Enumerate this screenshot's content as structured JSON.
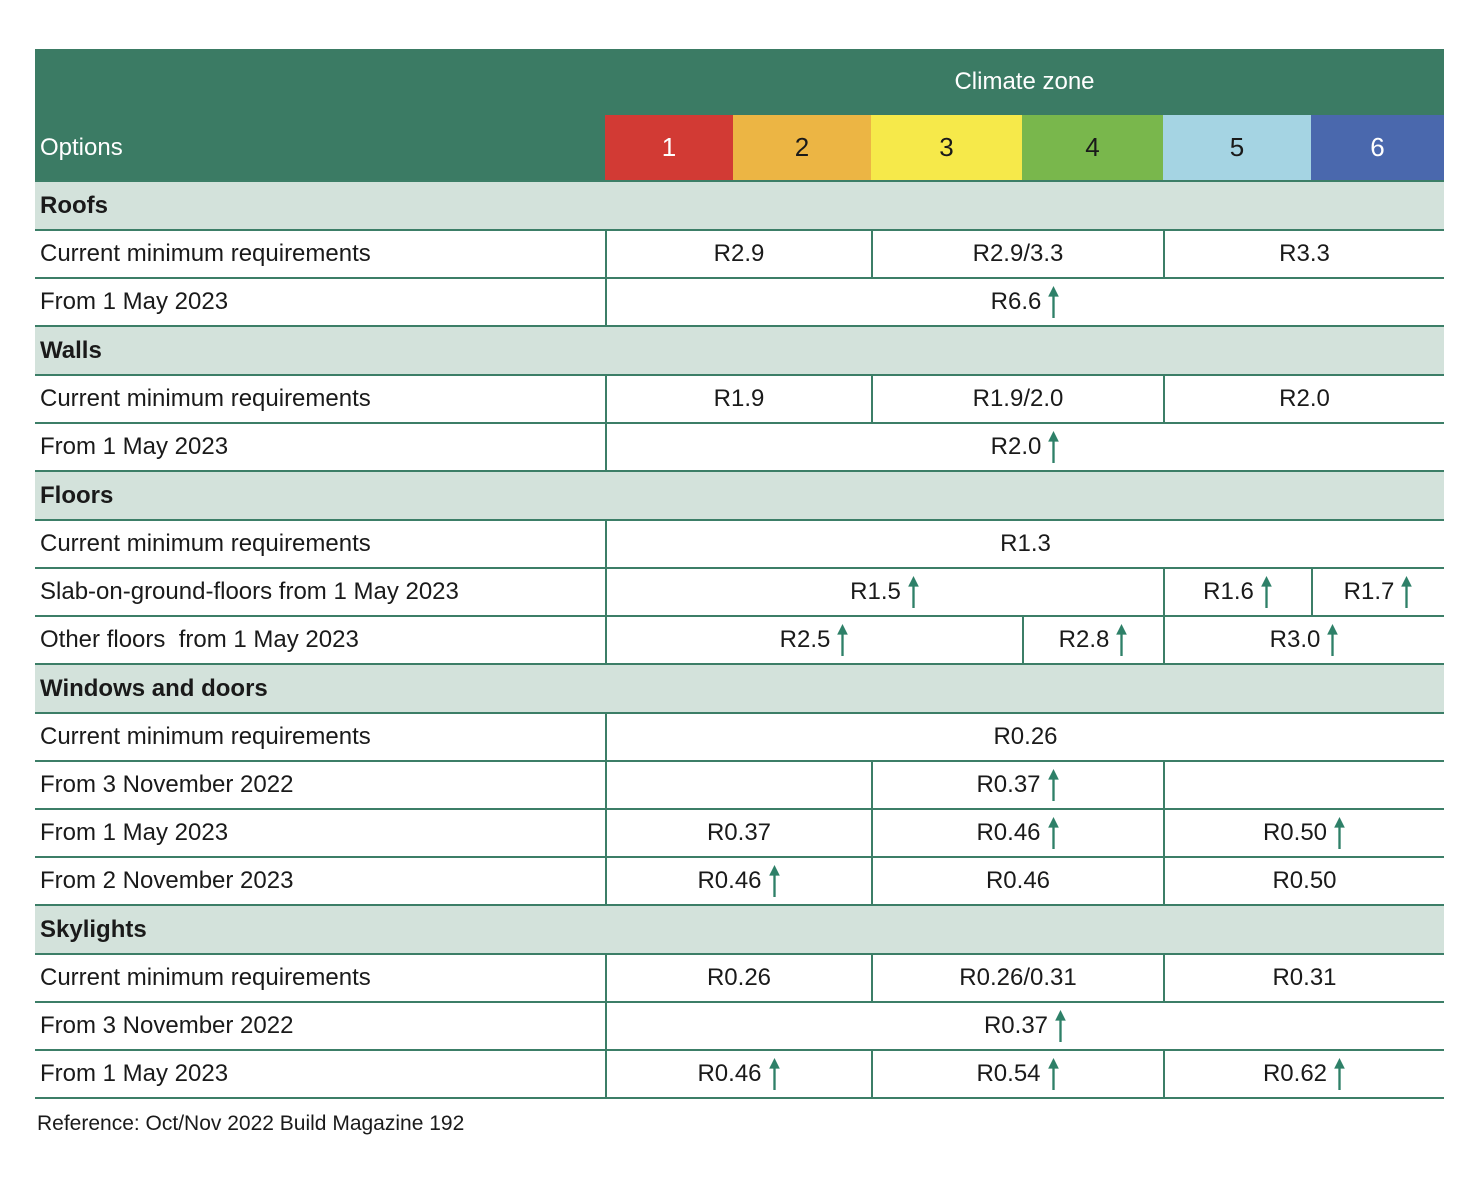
{
  "colors": {
    "header_green": "#3b7b64",
    "section_band": "#d3e2db",
    "border_line": "#3c7e67",
    "arrow_green": "#2e8068",
    "text_dark": "#1a1a1a",
    "header_text": "#ffffff"
  },
  "header": {
    "options_label": "Options",
    "climate_zone_label": "Climate zone",
    "zones": [
      {
        "label": "1",
        "color": "#d23a34",
        "text_color": "#ffffff"
      },
      {
        "label": "2",
        "color": "#ecb544",
        "text_color": "#1a1a1a"
      },
      {
        "label": "3",
        "color": "#f6e94a",
        "text_color": "#1a1a1a"
      },
      {
        "label": "4",
        "color": "#79b74c",
        "text_color": "#1a1a1a"
      },
      {
        "label": "5",
        "color": "#a5d4e3",
        "text_color": "#1a1a1a"
      },
      {
        "label": "6",
        "color": "#4a68ad",
        "text_color": "#ffffff"
      }
    ]
  },
  "chart_data": {
    "type": "table",
    "title": "Climate zone",
    "columns": [
      "Options",
      "1",
      "2",
      "3",
      "4",
      "5",
      "6"
    ],
    "legend_note": "up arrow = increased requirement",
    "rows": [
      {
        "section": "Roofs",
        "option": "Current minimum requirements",
        "values": [
          {
            "zones": [
              1,
              2
            ],
            "value": "R2.9",
            "increase": false
          },
          {
            "zones": [
              3,
              4
            ],
            "value": "R2.9/3.3",
            "increase": false
          },
          {
            "zones": [
              5,
              6
            ],
            "value": "R3.3",
            "increase": false
          }
        ]
      },
      {
        "section": "Roofs",
        "option": "From 1 May 2023",
        "values": [
          {
            "zones": [
              1,
              2,
              3,
              4,
              5,
              6
            ],
            "value": "R6.6",
            "increase": true
          }
        ]
      },
      {
        "section": "Walls",
        "option": "Current minimum requirements",
        "values": [
          {
            "zones": [
              1,
              2
            ],
            "value": "R1.9",
            "increase": false
          },
          {
            "zones": [
              3,
              4
            ],
            "value": "R1.9/2.0",
            "increase": false
          },
          {
            "zones": [
              5,
              6
            ],
            "value": "R2.0",
            "increase": false
          }
        ]
      },
      {
        "section": "Walls",
        "option": "From 1 May 2023",
        "values": [
          {
            "zones": [
              1,
              2,
              3,
              4,
              5,
              6
            ],
            "value": "R2.0",
            "increase": true
          }
        ]
      },
      {
        "section": "Floors",
        "option": "Current minimum requirements",
        "values": [
          {
            "zones": [
              1,
              2,
              3,
              4,
              5,
              6
            ],
            "value": "R1.3",
            "increase": false
          }
        ]
      },
      {
        "section": "Floors",
        "option": "Slab-on-ground-floors from 1 May 2023",
        "values": [
          {
            "zones": [
              1,
              2,
              3,
              4
            ],
            "value": "R1.5",
            "increase": true
          },
          {
            "zones": [
              5
            ],
            "value": "R1.6",
            "increase": true
          },
          {
            "zones": [
              6
            ],
            "value": "R1.7",
            "increase": true
          }
        ]
      },
      {
        "section": "Floors",
        "option": "Other floors  from 1 May 2023",
        "values": [
          {
            "zones": [
              1,
              2,
              3
            ],
            "value": "R2.5",
            "increase": true
          },
          {
            "zones": [
              4
            ],
            "value": "R2.8",
            "increase": true
          },
          {
            "zones": [
              5,
              6
            ],
            "value": "R3.0",
            "increase": true
          }
        ]
      },
      {
        "section": "Windows and doors",
        "option": "Current minimum requirements",
        "values": [
          {
            "zones": [
              1,
              2,
              3,
              4,
              5,
              6
            ],
            "value": "R0.26",
            "increase": false
          }
        ]
      },
      {
        "section": "Windows and doors",
        "option": "From 3 November 2022",
        "values": [
          {
            "zones": [
              1,
              2
            ],
            "value": "",
            "increase": false
          },
          {
            "zones": [
              3,
              4
            ],
            "value": "R0.37",
            "increase": true
          },
          {
            "zones": [
              5,
              6
            ],
            "value": "",
            "increase": false
          }
        ]
      },
      {
        "section": "Windows and doors",
        "option": "From 1 May 2023",
        "values": [
          {
            "zones": [
              1,
              2
            ],
            "value": "R0.37",
            "increase": false
          },
          {
            "zones": [
              3,
              4
            ],
            "value": "R0.46",
            "increase": true
          },
          {
            "zones": [
              5,
              6
            ],
            "value": "R0.50",
            "increase": true
          }
        ]
      },
      {
        "section": "Windows and doors",
        "option": "From 2 November 2023",
        "values": [
          {
            "zones": [
              1,
              2
            ],
            "value": "R0.46",
            "increase": true
          },
          {
            "zones": [
              3,
              4
            ],
            "value": "R0.46",
            "increase": false
          },
          {
            "zones": [
              5,
              6
            ],
            "value": "R0.50",
            "increase": false
          }
        ]
      },
      {
        "section": "Skylights",
        "option": "Current minimum requirements",
        "values": [
          {
            "zones": [
              1,
              2
            ],
            "value": "R0.26",
            "increase": false
          },
          {
            "zones": [
              3,
              4
            ],
            "value": "R0.26/0.31",
            "increase": false
          },
          {
            "zones": [
              5,
              6
            ],
            "value": "R0.31",
            "increase": false
          }
        ]
      },
      {
        "section": "Skylights",
        "option": "From 3 November 2022",
        "values": [
          {
            "zones": [
              1,
              2,
              3,
              4,
              5,
              6
            ],
            "value": "R0.37",
            "increase": true
          }
        ]
      },
      {
        "section": "Skylights",
        "option": "From 1 May 2023",
        "values": [
          {
            "zones": [
              1,
              2
            ],
            "value": "R0.46",
            "increase": true
          },
          {
            "zones": [
              3,
              4
            ],
            "value": "R0.54",
            "increase": true
          },
          {
            "zones": [
              5,
              6
            ],
            "value": "R0.62",
            "increase": true
          }
        ]
      }
    ]
  },
  "footer": {
    "reference": "Reference: Oct/Nov 2022 Build Magazine 192"
  }
}
